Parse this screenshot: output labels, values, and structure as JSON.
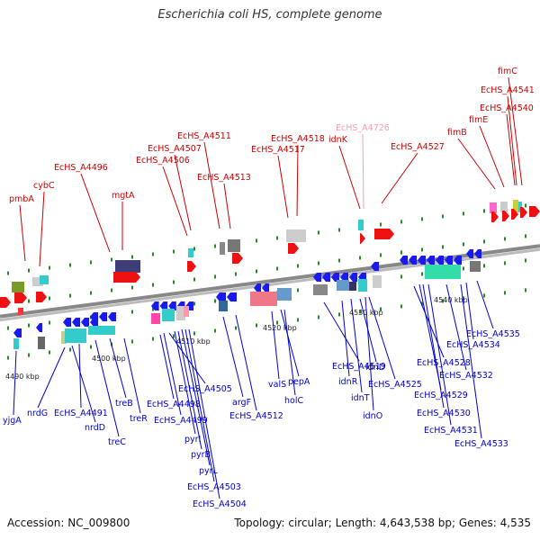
{
  "title": "Escherichia coli HS, complete genome",
  "footer": {
    "accession": "Accession: NC_009800",
    "stats": "Topology: circular; Length: 4,643,538 bp; Genes: 4,535"
  },
  "colors": {
    "top_label": "#cc0000",
    "top_label_faint": "#f4a0b0",
    "bottom_label": "#0000cc",
    "backbone": "#888888",
    "tick": "#228b22"
  },
  "kbp_labels": [
    "4490 kbp",
    "4500 kbp",
    "4510 kbp",
    "4520 kbp",
    "4530 kbp",
    "4540 kbp"
  ],
  "top_labels": [
    "pmbA",
    "cybC",
    "EcHS_A4496",
    "mgtA",
    "EcHS_A4506",
    "EcHS_A4507",
    "EcHS_A4511",
    "EcHS_A4513",
    "EcHS_A4517",
    "EcHS_A4518",
    "idnK",
    "EcHS_A4726",
    "EcHS_A4527",
    "fimB",
    "fimE",
    "EcHS_A4540",
    "EcHS_A4541",
    "fimC"
  ],
  "bottom_labels": [
    "yjgA",
    "nrdG",
    "nrdD",
    "EcHS_A4491",
    "treC",
    "treB",
    "treR",
    "EcHS_A4498",
    "EcHS_A4499",
    "EcHS_A4505",
    "pyrI",
    "pyrB",
    "pyrL",
    "EcHS_A4503",
    "EcHS_A4504",
    "argF",
    "EcHS_A4512",
    "valS",
    "pepA",
    "holC",
    "EcHS_A4519",
    "idnR",
    "idnT",
    "idnD",
    "idnO",
    "EcHS_A4525",
    "EcHS_A4528",
    "EcHS_A4529",
    "EcHS_A4530",
    "EcHS_A4531",
    "EcHS_A4532",
    "EcHS_A4533",
    "EcHS_A4534",
    "EcHS_A4535"
  ]
}
